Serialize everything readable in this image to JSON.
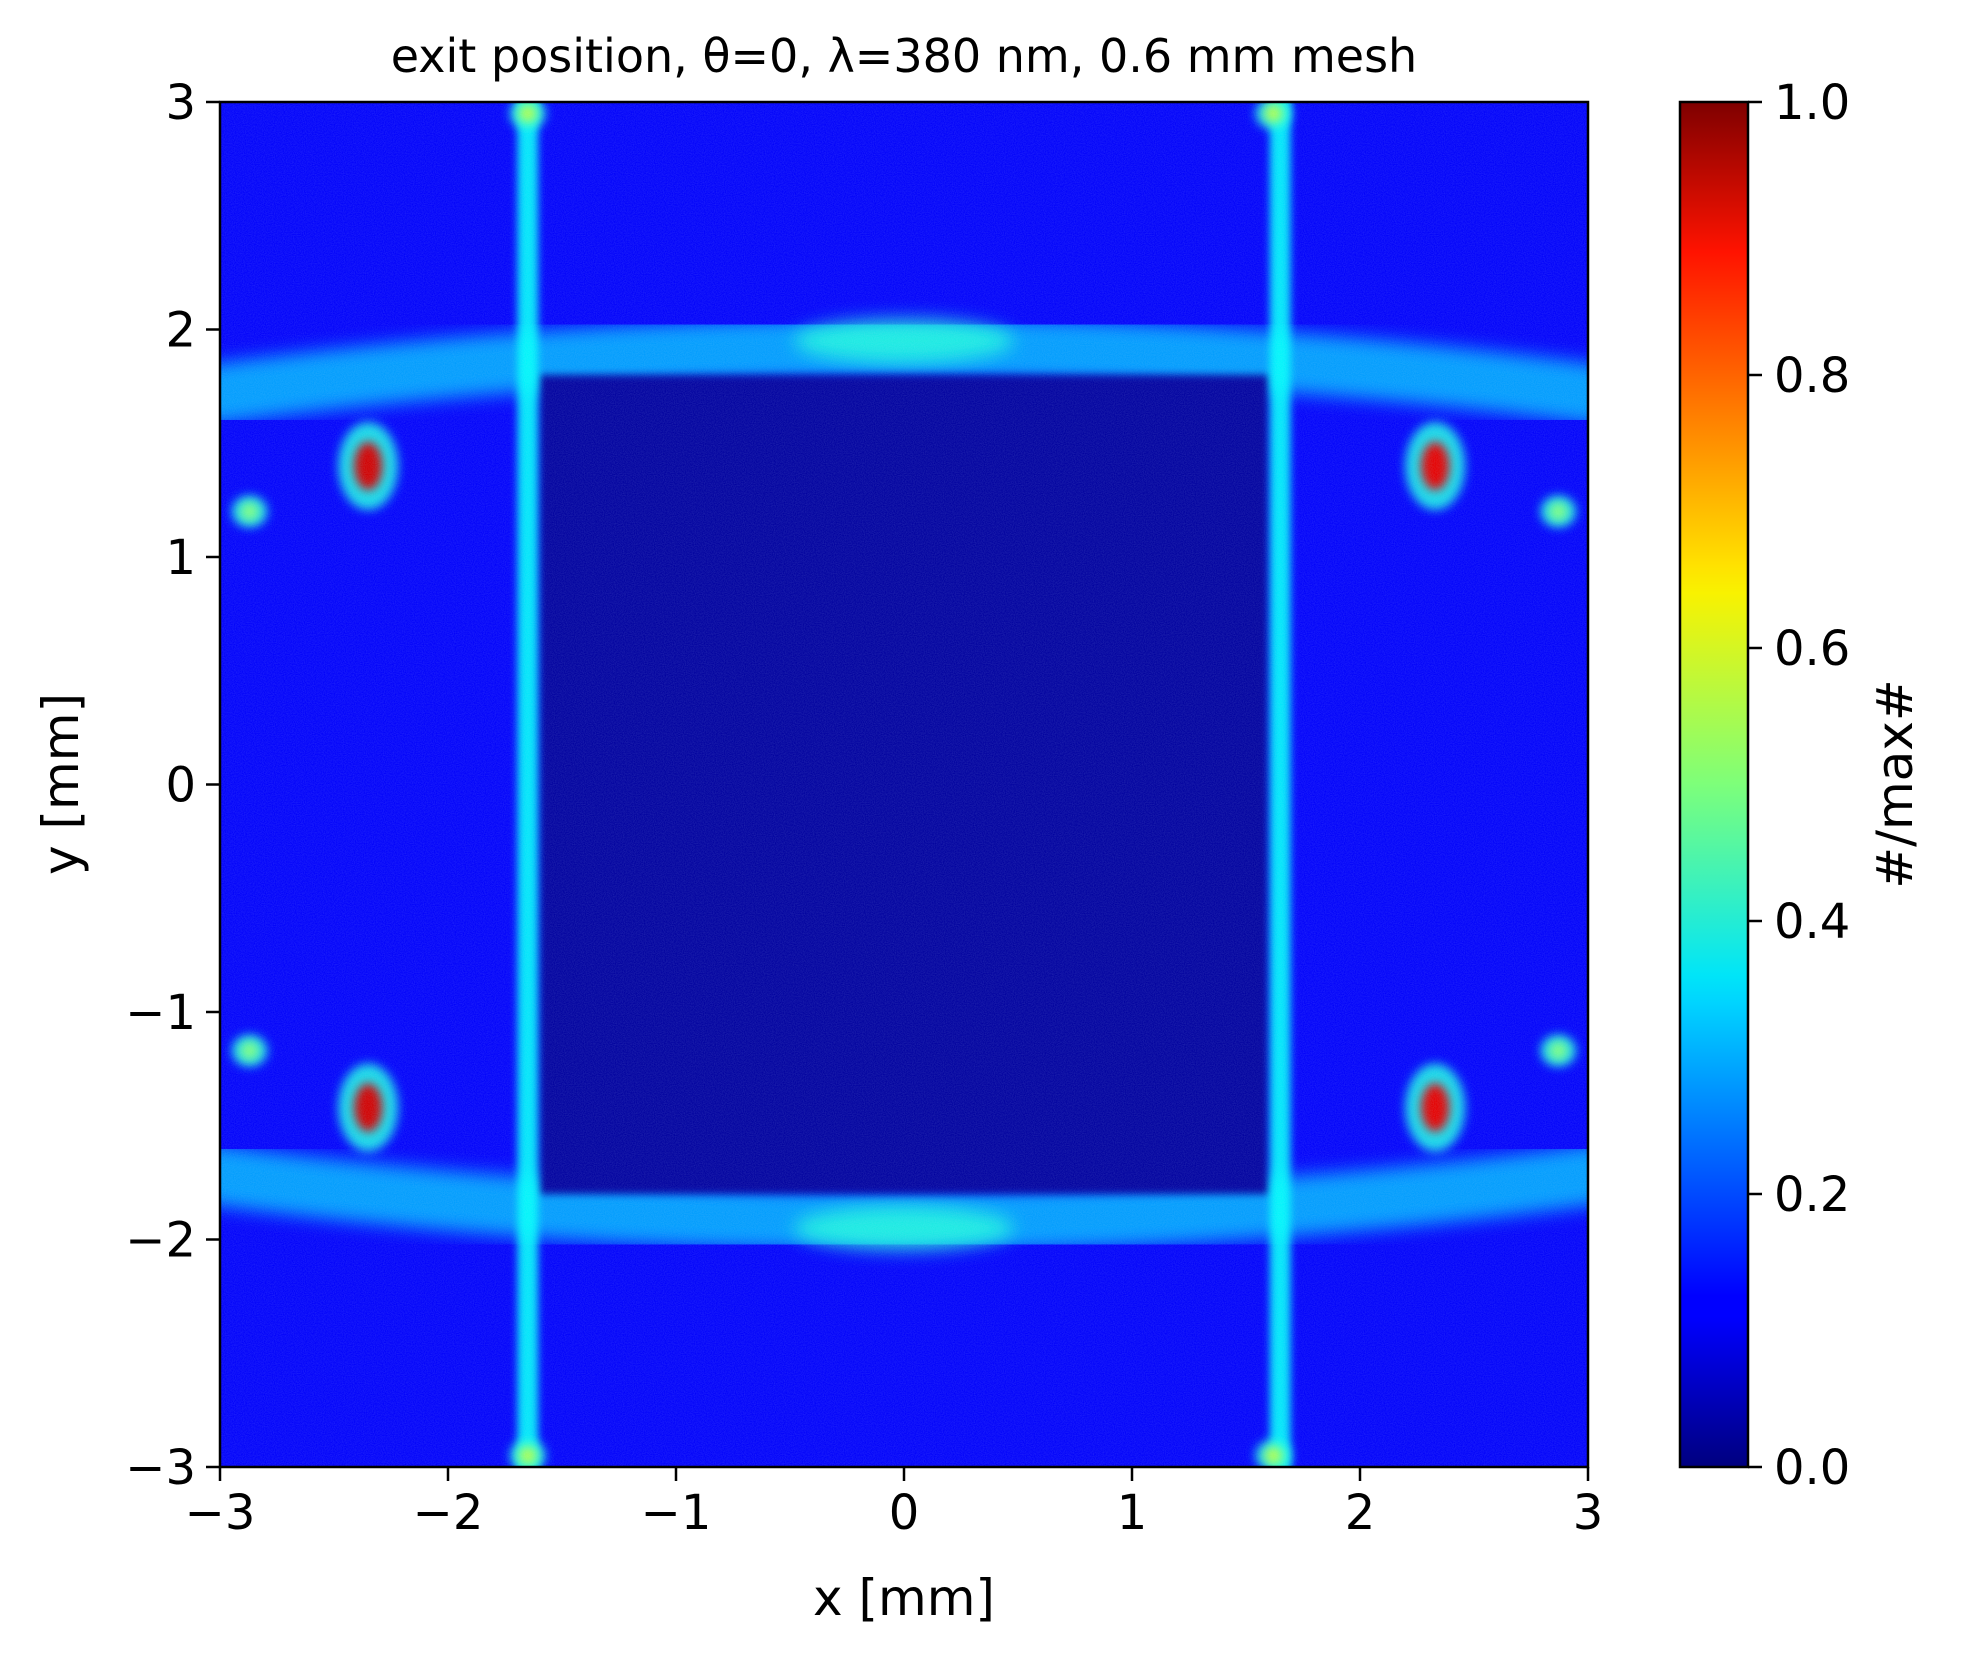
{
  "chart_data": {
    "type": "heatmap",
    "title": "exit position, θ=0, λ=380 nm, 0.6 mm mesh",
    "xlabel": "x [mm]",
    "ylabel": "y [mm]",
    "xlim": [
      -3,
      3
    ],
    "ylim": [
      -3,
      3
    ],
    "xticks": [
      -3,
      -2,
      -1,
      0,
      1,
      2,
      3
    ],
    "yticks": [
      -3,
      -2,
      -1,
      0,
      1,
      2,
      3
    ],
    "xtick_labels": [
      "−3",
      "−2",
      "−1",
      "0",
      "1",
      "2",
      "3"
    ],
    "ytick_labels": [
      "−3",
      "−2",
      "−1",
      "0",
      "1",
      "2",
      "3"
    ],
    "colormap": "jet",
    "colorbar": {
      "label": "#/max#",
      "range": [
        0.0,
        1.0
      ],
      "ticks": [
        0.0,
        0.2,
        0.4,
        0.6,
        0.8,
        1.0
      ],
      "tick_labels": [
        "0.0",
        "0.2",
        "0.4",
        "0.6",
        "0.8",
        "1.0"
      ]
    },
    "background_value": 0.12,
    "inner_region": {
      "x_range": [
        -1.6,
        1.6
      ],
      "y_range": [
        -1.8,
        1.8
      ],
      "value": 0.03
    },
    "vertical_bands": [
      {
        "x": -1.65,
        "width": 0.09,
        "value": 0.38
      },
      {
        "x": 1.65,
        "width": 0.09,
        "value": 0.38
      }
    ],
    "horizontal_arcs": [
      {
        "y": 1.95,
        "value": 0.33
      },
      {
        "y": -1.95,
        "value": 0.33
      }
    ],
    "hot_spots": [
      {
        "x": -2.35,
        "y": 1.4,
        "value": 0.92
      },
      {
        "x": 2.33,
        "y": 1.4,
        "value": 0.9
      },
      {
        "x": -2.35,
        "y": -1.42,
        "value": 0.92
      },
      {
        "x": 2.33,
        "y": -1.42,
        "value": 0.9
      },
      {
        "x": -2.87,
        "y": 1.2,
        "value": 0.5
      },
      {
        "x": 2.87,
        "y": 1.2,
        "value": 0.5
      },
      {
        "x": -2.87,
        "y": -1.17,
        "value": 0.5
      },
      {
        "x": 2.87,
        "y": -1.17,
        "value": 0.5
      },
      {
        "x": -1.65,
        "y": 2.95,
        "value": 0.55
      },
      {
        "x": 1.62,
        "y": 2.95,
        "value": 0.55
      },
      {
        "x": -1.65,
        "y": -2.95,
        "value": 0.55
      },
      {
        "x": 1.62,
        "y": -2.95,
        "value": 0.55
      }
    ]
  }
}
